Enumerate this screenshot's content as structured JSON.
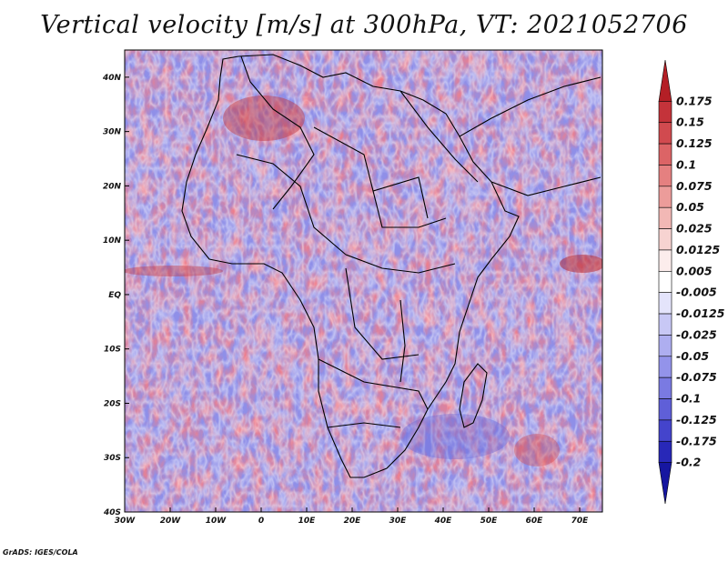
{
  "title": "Vertical velocity [m/s] at 300hPa, VT: 2021052706",
  "credit": "GrADS: IGES/COLA",
  "map": {
    "region": "Africa",
    "variable": "Vertical velocity",
    "units": "m/s",
    "level": "300hPa",
    "lon_range": [
      -30,
      75
    ],
    "lat_range": [
      -40,
      45
    ],
    "lon_labels": [
      "30W",
      "20W",
      "10W",
      "0",
      "10E",
      "20E",
      "30E",
      "40E",
      "50E",
      "60E",
      "70E"
    ],
    "lat_labels": [
      "40N",
      "30N",
      "20N",
      "10N",
      "EQ",
      "10S",
      "20S",
      "30S",
      "40S"
    ]
  },
  "colorbar": {
    "labels": [
      "0.175",
      "0.15",
      "0.125",
      "0.1",
      "0.075",
      "0.05",
      "0.025",
      "0.0125",
      "0.005",
      "-0.005",
      "-0.0125",
      "-0.025",
      "-0.05",
      "-0.075",
      "-0.1",
      "-0.125",
      "-0.175",
      "-0.2"
    ],
    "colors": [
      "#b41f26",
      "#c4333a",
      "#d14a4f",
      "#dc6466",
      "#e58080",
      "#ec9c9a",
      "#f2b8b5",
      "#f7d3d1",
      "#fcedec",
      "#ffffff",
      "#e4e4fb",
      "#c8c8f5",
      "#aeaef0",
      "#9393ea",
      "#7a7ae2",
      "#5f5fd8",
      "#4444cc",
      "#2828b8",
      "#1616a0"
    ]
  }
}
